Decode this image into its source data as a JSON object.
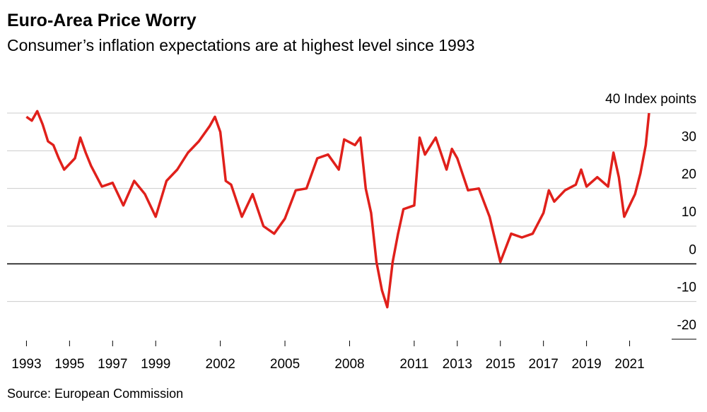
{
  "chart_data": {
    "type": "line",
    "title": "Euro-Area Price Worry",
    "subtitle": "Consumer’s inflation expectations are at highest level since 1993",
    "source": "Source: European Commission",
    "x": [
      1993.0,
      1993.25,
      1993.5,
      1993.75,
      1994.0,
      1994.25,
      1994.5,
      1994.75,
      1995.0,
      1995.25,
      1995.5,
      1995.75,
      1996.0,
      1996.5,
      1997.0,
      1997.5,
      1998.0,
      1998.5,
      1999.0,
      1999.5,
      2000.0,
      2000.5,
      2001.0,
      2001.5,
      2001.75,
      2002.0,
      2002.25,
      2002.5,
      2003.0,
      2003.5,
      2004.0,
      2004.5,
      2005.0,
      2005.5,
      2006.0,
      2006.5,
      2007.0,
      2007.5,
      2007.75,
      2008.25,
      2008.5,
      2008.75,
      2009.0,
      2009.25,
      2009.5,
      2009.75,
      2010.0,
      2010.25,
      2010.5,
      2011.0,
      2011.25,
      2011.5,
      2012.0,
      2012.5,
      2012.75,
      2013.0,
      2013.5,
      2014.0,
      2014.5,
      2015.0,
      2015.5,
      2016.0,
      2016.5,
      2017.0,
      2017.25,
      2017.5,
      2018.0,
      2018.5,
      2018.75,
      2019.0,
      2019.5,
      2020.0,
      2020.25,
      2020.5,
      2020.75,
      2021.0,
      2021.25,
      2021.5,
      2021.75,
      2021.9
    ],
    "series": [
      {
        "name": "Inflation expectations",
        "color": "#e0201b",
        "values": [
          39,
          38,
          40.5,
          37,
          32.5,
          31.5,
          28,
          25,
          26.5,
          28,
          33.5,
          29.5,
          26,
          20.5,
          21.5,
          15.5,
          22,
          18.5,
          12.5,
          22,
          25,
          29.5,
          32.5,
          36.5,
          39,
          35,
          22,
          21,
          12.5,
          18.5,
          10,
          8,
          12,
          19.5,
          20,
          28,
          29,
          25,
          33,
          31.5,
          33.5,
          20,
          13.5,
          0.5,
          -7,
          -11.5,
          0.5,
          8,
          14.5,
          15.5,
          33.5,
          29,
          33.5,
          25,
          30.5,
          28,
          19.5,
          20,
          12.5,
          0.5,
          8,
          7,
          8,
          13.5,
          19.5,
          16.5,
          19.5,
          21,
          25,
          20.5,
          23,
          20.5,
          29.5,
          23,
          12.5,
          15.5,
          18.5,
          24,
          31.5,
          40
        ]
      }
    ],
    "xlim": [
      1992.1,
      2024.1
    ],
    "xticks": [
      1993,
      1995,
      1997,
      1999,
      2002,
      2005,
      2008,
      2011,
      2013,
      2015,
      2017,
      2019,
      2021
    ],
    "ylim": [
      -20,
      40
    ],
    "yticks": [
      {
        "value": 40,
        "label": "40 Index points"
      },
      30,
      20,
      10,
      0,
      -10,
      -20
    ],
    "grid": true
  }
}
